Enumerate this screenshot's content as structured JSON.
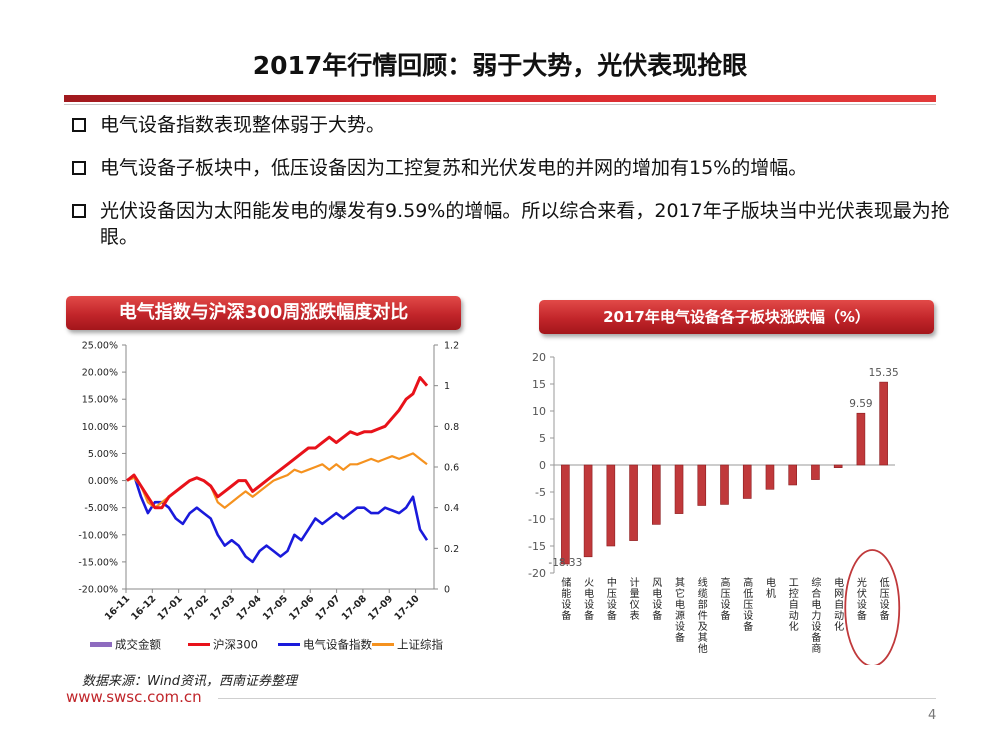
{
  "title": "2017年行情回顾：弱于大势，光伏表现抢眼",
  "bullets": [
    "电气设备指数表现整体弱于大势。",
    "电气设备子板块中，低压设备因为工控复苏和光伏发电的并网的增加有15%的增幅。",
    "光伏设备因为太阳能发电的爆发有9.59%的增幅。所以综合来看，2017年子版块当中光伏表现最为抢眼。"
  ],
  "colors": {
    "accent": "#c0252a",
    "banner": "#c2252a",
    "bar": "#c0393b",
    "hs300": "#e8121a",
    "elec": "#1a1adb",
    "sh": "#f5921f",
    "volume": "#8e6bbf"
  },
  "chart_data": [
    {
      "type": "line",
      "title": "电气指数与沪深300周涨跌幅度对比",
      "x_ticks": [
        "16-11",
        "16-12",
        "17-01",
        "17-02",
        "17-03",
        "17-04",
        "17-05",
        "17-06",
        "17-07",
        "17-08",
        "17-09",
        "17-10"
      ],
      "y_left": {
        "range": [
          -0.2,
          0.25
        ],
        "ticks": [
          "25.00%",
          "20.00%",
          "15.00%",
          "10.00%",
          "5.00%",
          "0.00%",
          "-5.00%",
          "-10.00%",
          "-15.00%",
          "-20.00%"
        ]
      },
      "y_right": {
        "range": [
          0,
          1.2
        ],
        "ticks": [
          "1.2",
          "1",
          "0.8",
          "0.6",
          "0.4",
          "0.2",
          "0"
        ]
      },
      "legend": [
        "成交金额",
        "沪深300",
        "电气设备指数",
        "上证综指"
      ],
      "legend_position": "bottom",
      "series": [
        {
          "name": "沪深300",
          "values": [
            0.0,
            0.01,
            -0.01,
            -0.03,
            -0.05,
            -0.05,
            -0.03,
            -0.02,
            -0.01,
            0.0,
            0.005,
            0.0,
            -0.01,
            -0.03,
            -0.02,
            -0.01,
            0.0,
            0.0,
            -0.02,
            -0.01,
            0.0,
            0.01,
            0.02,
            0.03,
            0.04,
            0.05,
            0.06,
            0.06,
            0.07,
            0.08,
            0.07,
            0.08,
            0.09,
            0.085,
            0.09,
            0.09,
            0.095,
            0.1,
            0.115,
            0.13,
            0.15,
            0.16,
            0.19,
            0.175
          ]
        },
        {
          "name": "电气设备指数",
          "values": [
            0.0,
            0.01,
            -0.03,
            -0.06,
            -0.04,
            -0.04,
            -0.05,
            -0.07,
            -0.08,
            -0.06,
            -0.05,
            -0.06,
            -0.07,
            -0.1,
            -0.12,
            -0.11,
            -0.12,
            -0.14,
            -0.15,
            -0.13,
            -0.12,
            -0.13,
            -0.14,
            -0.13,
            -0.1,
            -0.11,
            -0.09,
            -0.07,
            -0.08,
            -0.07,
            -0.06,
            -0.07,
            -0.06,
            -0.05,
            -0.05,
            -0.06,
            -0.06,
            -0.05,
            -0.055,
            -0.06,
            -0.05,
            -0.03,
            -0.09,
            -0.11
          ]
        },
        {
          "name": "上证综指",
          "values": [
            0.0,
            0.005,
            -0.01,
            -0.04,
            -0.05,
            -0.04,
            -0.03,
            -0.02,
            -0.01,
            0.0,
            0.005,
            0.0,
            -0.01,
            -0.04,
            -0.05,
            -0.04,
            -0.03,
            -0.02,
            -0.03,
            -0.02,
            -0.01,
            0.0,
            0.005,
            0.01,
            0.02,
            0.015,
            0.02,
            0.025,
            0.03,
            0.02,
            0.03,
            0.02,
            0.03,
            0.03,
            0.035,
            0.04,
            0.035,
            0.04,
            0.045,
            0.04,
            0.045,
            0.05,
            0.04,
            0.03
          ]
        }
      ]
    },
    {
      "type": "bar",
      "title": "2017年电气设备各子板块涨跌幅（%）",
      "categories": [
        "储能设备",
        "火电设备",
        "中压设备",
        "计量仪表",
        "风电设备",
        "其它电源设备",
        "线缆部件及其他",
        "高压设备",
        "高低压设备",
        "电机",
        "工控自动化",
        "综合电力设备商",
        "电网自动化",
        "光伏设备",
        "低压设备"
      ],
      "values": [
        -18.33,
        -17.0,
        -15.0,
        -14.0,
        -11.0,
        -9.0,
        -7.5,
        -7.3,
        -6.2,
        -4.5,
        -3.7,
        -2.7,
        -0.5,
        9.59,
        15.35
      ],
      "data_labels": {
        "0": "-18.33",
        "13": "9.59",
        "14": "15.35"
      },
      "ylim": [
        -20,
        20
      ],
      "y_ticks": [
        "20",
        "15",
        "10",
        "5",
        "0",
        "-5",
        "-10",
        "-15",
        "-20"
      ],
      "highlight": [
        13,
        14
      ]
    }
  ],
  "footer": {
    "source": "数据来源：Wind资讯，西南证券整理",
    "url": "www.swsc.com.cn",
    "page": "4"
  }
}
